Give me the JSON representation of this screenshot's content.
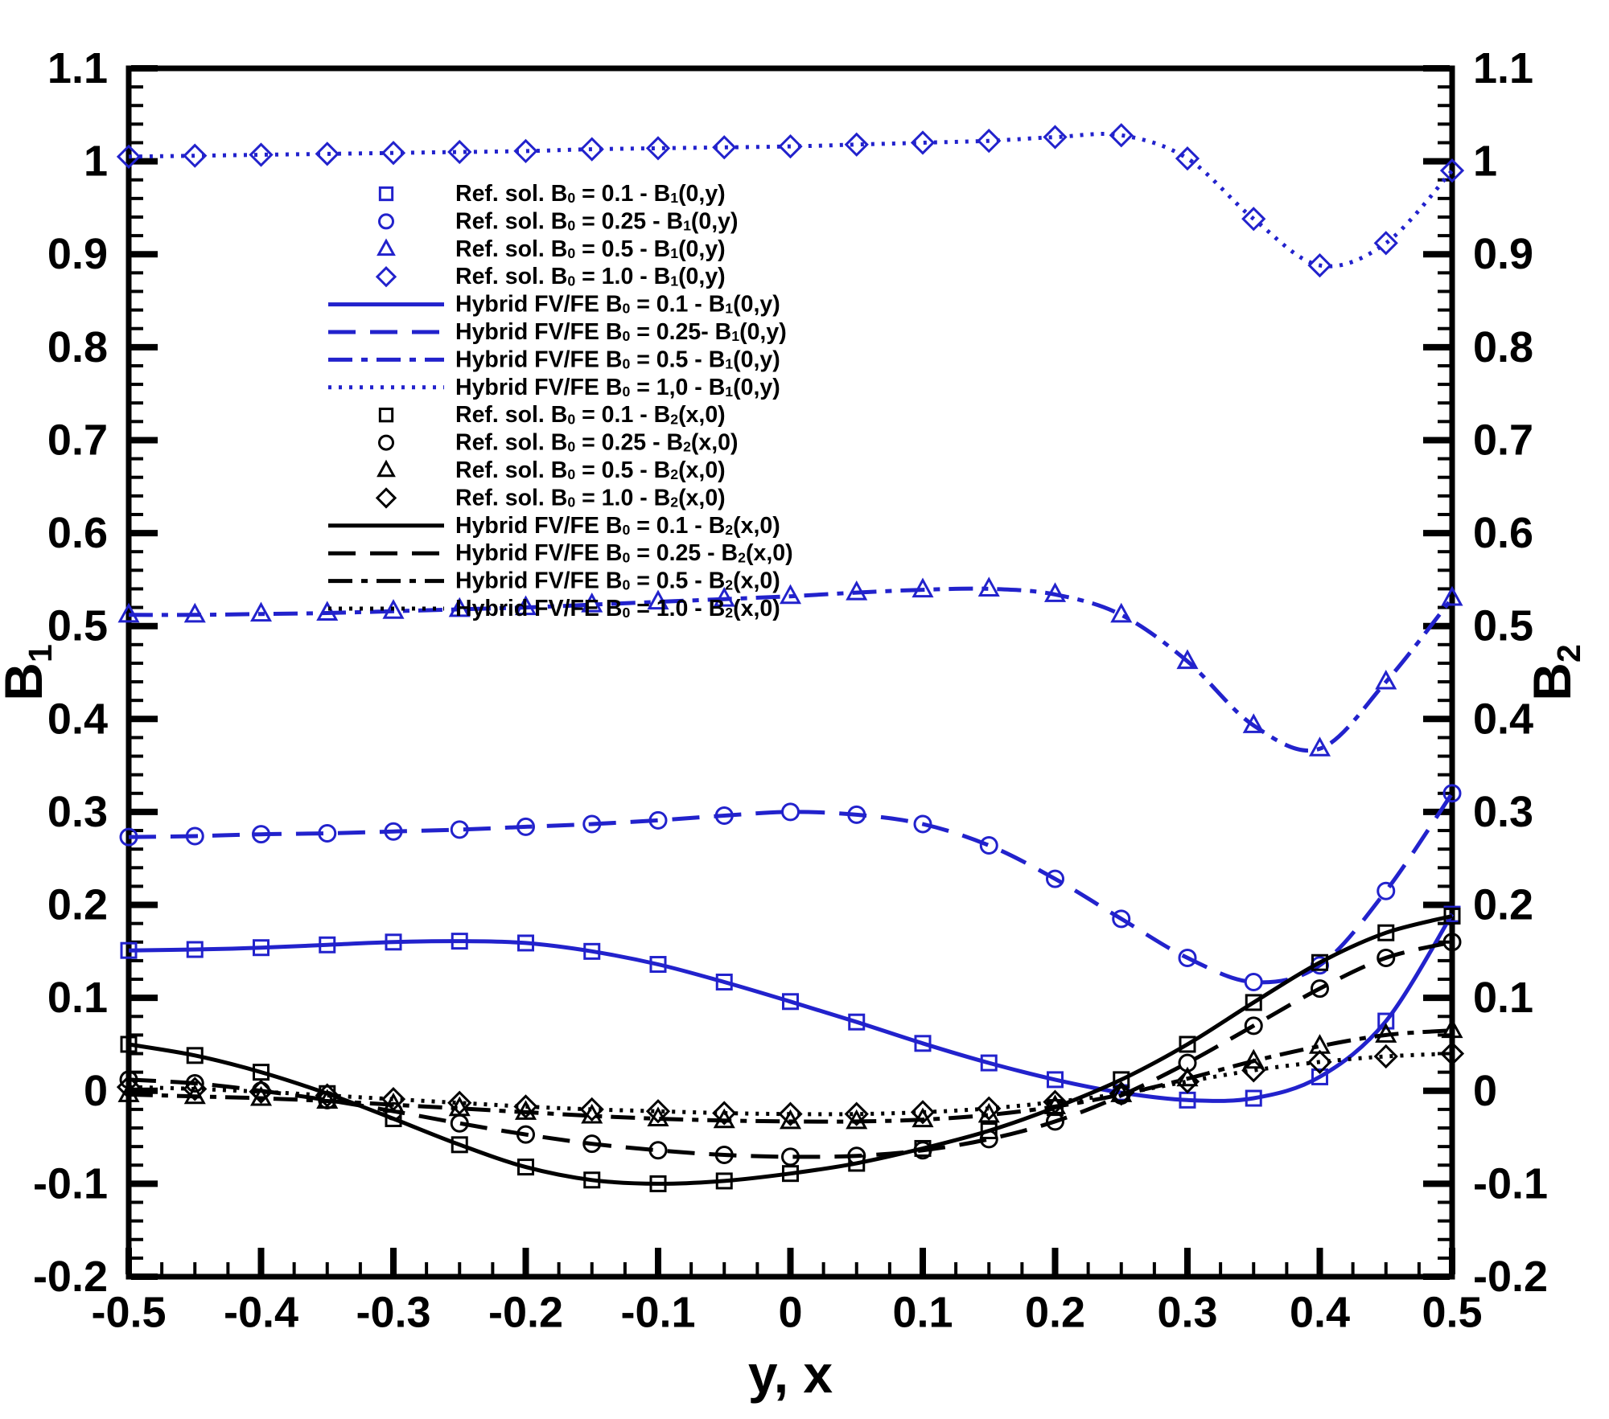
{
  "figure": {
    "background": "#ffffff",
    "frame_color": "#000000",
    "series_colors": {
      "blue": "#2222cc",
      "black": "#000000"
    }
  },
  "chart_data": {
    "type": "line",
    "title": "",
    "xlabel": "y, x",
    "ylabel_left": "B₁",
    "ylabel_right": "B₂",
    "xlim": [
      -0.5,
      0.5
    ],
    "ylim": [
      -0.2,
      1.1
    ],
    "grid": false,
    "legend_position": "upper-left-inside",
    "x_ticks": {
      "values": [
        -0.5,
        -0.4,
        -0.3,
        -0.2,
        -0.1,
        0,
        0.1,
        0.2,
        0.3,
        0.4,
        0.5
      ],
      "labels": [
        "-0.5",
        "-0.4",
        "-0.3",
        "-0.2",
        "-0.1",
        "0",
        "0.1",
        "0.2",
        "0.3",
        "0.4",
        "0.5"
      ],
      "minor_divisions": 4
    },
    "y_ticks": {
      "values": [
        -0.2,
        -0.1,
        0,
        0.1,
        0.2,
        0.3,
        0.4,
        0.5,
        0.6,
        0.7,
        0.8,
        0.9,
        1,
        1.1
      ],
      "labels": [
        "-0.2",
        "-0.1",
        "0",
        "0.1",
        "0.2",
        "0.3",
        "0.4",
        "0.5",
        "0.6",
        "0.7",
        "0.8",
        "0.9",
        "1",
        "1.1"
      ],
      "minor_divisions": 5
    },
    "x": [
      -0.5,
      -0.45,
      -0.4,
      -0.35,
      -0.3,
      -0.25,
      -0.2,
      -0.15,
      -0.1,
      -0.05,
      0,
      0.05,
      0.1,
      0.15,
      0.2,
      0.25,
      0.3,
      0.35,
      0.4,
      0.45,
      0.5
    ],
    "series": [
      {
        "id": "b1-b0-0p1",
        "group": "B₁(0,y)",
        "b0": "0.1",
        "color": "#2222cc",
        "line_style": "solid",
        "marker": "square",
        "label_ref": "Ref. sol. B₀ = 0.1 - B₁(0,y)",
        "label_hybrid": "Hybrid FV/FE B₀ = 0.1 - B₁(0,y)",
        "y": [
          0.151,
          0.152,
          0.154,
          0.157,
          0.16,
          0.161,
          0.159,
          0.15,
          0.136,
          0.117,
          0.096,
          0.074,
          0.051,
          0.03,
          0.012,
          -0.002,
          -0.01,
          -0.008,
          0.015,
          0.075,
          0.19
        ]
      },
      {
        "id": "b1-b0-0p25",
        "group": "B₁(0,y)",
        "b0": "0.25",
        "color": "#2222cc",
        "line_style": "dashed",
        "marker": "circle",
        "label_ref": "Ref. sol. B₀ = 0.25 - B₁(0,y)",
        "label_hybrid": "Hybrid FV/FE B₀ = 0.25- B₁(0,y)",
        "y": [
          0.273,
          0.274,
          0.276,
          0.277,
          0.279,
          0.281,
          0.284,
          0.287,
          0.291,
          0.296,
          0.3,
          0.297,
          0.287,
          0.264,
          0.228,
          0.185,
          0.143,
          0.117,
          0.135,
          0.215,
          0.32
        ]
      },
      {
        "id": "b1-b0-0p5",
        "group": "B₁(0,y)",
        "b0": "0.5",
        "color": "#2222cc",
        "line_style": "dashdot",
        "marker": "triangle",
        "label_ref": "Ref. sol. B₀ = 0.5 - B₁(0,y)",
        "label_hybrid": "Hybrid FV/FE B₀ = 0.5 - B₁(0,y)",
        "y": [
          0.512,
          0.512,
          0.513,
          0.514,
          0.516,
          0.518,
          0.52,
          0.523,
          0.526,
          0.529,
          0.532,
          0.536,
          0.539,
          0.54,
          0.534,
          0.512,
          0.462,
          0.393,
          0.368,
          0.44,
          0.53
        ]
      },
      {
        "id": "b1-b0-1p0",
        "group": "B₁(0,y)",
        "b0": "1.0",
        "color": "#2222cc",
        "line_style": "dotted",
        "marker": "diamond",
        "label_ref": "Ref. sol. B₀ = 1.0 - B₁(0,y)",
        "label_hybrid": "Hybrid FV/FE B₀ = 1,0 - B₁(0,y)",
        "y": [
          1.005,
          1.006,
          1.007,
          1.008,
          1.009,
          1.01,
          1.011,
          1.013,
          1.014,
          1.015,
          1.016,
          1.018,
          1.02,
          1.022,
          1.026,
          1.028,
          1.003,
          0.938,
          0.888,
          0.912,
          0.99
        ]
      },
      {
        "id": "b2-b0-0p1",
        "group": "B₂(x,0)",
        "b0": "0.1",
        "color": "#000000",
        "line_style": "solid",
        "marker": "square",
        "label_ref": "Ref. sol. B₀ = 0.1 - B₂(x,0)",
        "label_hybrid": "Hybrid FV/FE B₀ = 0.1 - B₂(x,0)",
        "y": [
          0.05,
          0.038,
          0.02,
          -0.003,
          -0.03,
          -0.058,
          -0.082,
          -0.096,
          -0.1,
          -0.097,
          -0.089,
          -0.078,
          -0.062,
          -0.043,
          -0.018,
          0.012,
          0.05,
          0.095,
          0.138,
          0.17,
          0.188
        ]
      },
      {
        "id": "b2-b0-0p25",
        "group": "B₂(x,0)",
        "b0": "0.25",
        "color": "#000000",
        "line_style": "dashed",
        "marker": "circle",
        "label_ref": "Ref. sol. B₀ = 0.25 - B₂(x,0)",
        "label_hybrid": "Hybrid FV/FE B₀ = 0.25 - B₂(x,0)",
        "y": [
          0.012,
          0.008,
          0.0,
          -0.01,
          -0.022,
          -0.035,
          -0.047,
          -0.057,
          -0.064,
          -0.069,
          -0.071,
          -0.07,
          -0.064,
          -0.052,
          -0.033,
          -0.005,
          0.03,
          0.07,
          0.11,
          0.143,
          0.16
        ]
      },
      {
        "id": "b2-b0-0p5",
        "group": "B₂(x,0)",
        "b0": "0.5",
        "color": "#000000",
        "line_style": "dashdot",
        "marker": "triangle",
        "label_ref": "Ref. sol. B₀ = 0.5 - B₂(x,0)",
        "label_hybrid": "Hybrid FV/FE B₀ = 0.5 - B₂(x,0)",
        "y": [
          -0.004,
          -0.006,
          -0.008,
          -0.011,
          -0.015,
          -0.019,
          -0.023,
          -0.027,
          -0.03,
          -0.032,
          -0.033,
          -0.033,
          -0.031,
          -0.026,
          -0.017,
          -0.004,
          0.013,
          0.032,
          0.048,
          0.06,
          0.065
        ]
      },
      {
        "id": "b2-b0-1p0",
        "group": "B₂(x,0)",
        "b0": "1.0",
        "color": "#000000",
        "line_style": "dotted",
        "marker": "diamond",
        "label_ref": "Ref. sol. B₀ = 1.0 - B₂(x,0)",
        "label_hybrid": "Hybrid FV/FE B₀ = 1.0 - B₂(x,0)",
        "y": [
          0.004,
          0.002,
          -0.001,
          -0.005,
          -0.009,
          -0.013,
          -0.017,
          -0.02,
          -0.022,
          -0.024,
          -0.025,
          -0.025,
          -0.023,
          -0.019,
          -0.012,
          -0.003,
          0.01,
          0.022,
          0.031,
          0.037,
          0.04
        ]
      }
    ],
    "legend": {
      "entries": [
        {
          "series": 0,
          "kind": "marker"
        },
        {
          "series": 1,
          "kind": "marker"
        },
        {
          "series": 2,
          "kind": "marker"
        },
        {
          "series": 3,
          "kind": "marker"
        },
        {
          "series": 0,
          "kind": "line"
        },
        {
          "series": 1,
          "kind": "line"
        },
        {
          "series": 2,
          "kind": "line"
        },
        {
          "series": 3,
          "kind": "line"
        },
        {
          "series": 4,
          "kind": "marker"
        },
        {
          "series": 5,
          "kind": "marker"
        },
        {
          "series": 6,
          "kind": "marker"
        },
        {
          "series": 7,
          "kind": "marker"
        },
        {
          "series": 4,
          "kind": "line"
        },
        {
          "series": 5,
          "kind": "line"
        },
        {
          "series": 6,
          "kind": "line"
        },
        {
          "series": 7,
          "kind": "line"
        }
      ]
    }
  }
}
